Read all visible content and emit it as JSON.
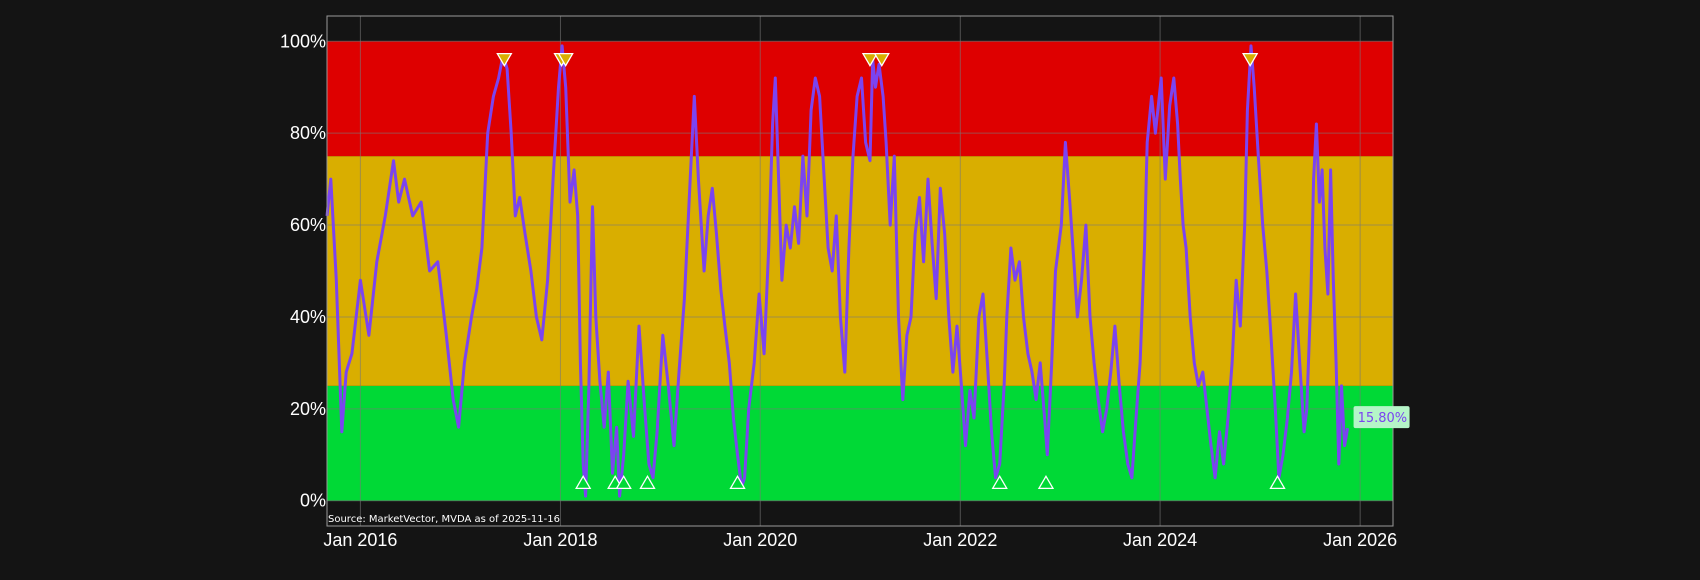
{
  "chart_data": {
    "type": "line",
    "title": "",
    "xlabel": "",
    "ylabel": "",
    "x_range": [
      "2015-09-01",
      "2026-05-01"
    ],
    "ylim": [
      -5.5,
      105.5
    ],
    "x_ticks": [
      {
        "date": "2016-01-01",
        "label": "Jan 2016"
      },
      {
        "date": "2018-01-01",
        "label": "Jan 2018"
      },
      {
        "date": "2020-01-01",
        "label": "Jan 2020"
      },
      {
        "date": "2022-01-01",
        "label": "Jan 2022"
      },
      {
        "date": "2024-01-01",
        "label": "Jan 2024"
      },
      {
        "date": "2026-01-01",
        "label": "Jan 2026"
      }
    ],
    "y_ticks": [
      {
        "value": 0,
        "label": "0%"
      },
      {
        "value": 20,
        "label": "20%"
      },
      {
        "value": 40,
        "label": "40%"
      },
      {
        "value": 60,
        "label": "60%"
      },
      {
        "value": 80,
        "label": "80%"
      },
      {
        "value": 100,
        "label": "100%"
      }
    ],
    "grid": true,
    "bands": [
      {
        "from": 0,
        "to": 25,
        "color": "#00d936"
      },
      {
        "from": 25,
        "to": 75,
        "color": "#d9ae00"
      },
      {
        "from": 75,
        "to": 100,
        "color": "#de0000"
      }
    ],
    "series": [
      {
        "color": "#7b44f0",
        "points": [
          [
            "2015-09-01",
            62
          ],
          [
            "2015-09-15",
            70
          ],
          [
            "2015-10-05",
            48
          ],
          [
            "2015-10-25",
            15
          ],
          [
            "2015-11-10",
            28
          ],
          [
            "2015-12-01",
            32
          ],
          [
            "2016-01-01",
            48
          ],
          [
            "2016-02-01",
            36
          ],
          [
            "2016-03-01",
            52
          ],
          [
            "2016-04-01",
            62
          ],
          [
            "2016-05-01",
            74
          ],
          [
            "2016-05-20",
            65
          ],
          [
            "2016-06-10",
            70
          ],
          [
            "2016-07-10",
            62
          ],
          [
            "2016-08-10",
            65
          ],
          [
            "2016-09-10",
            50
          ],
          [
            "2016-10-10",
            52
          ],
          [
            "2016-11-10",
            36
          ],
          [
            "2016-12-05",
            22
          ],
          [
            "2016-12-25",
            16
          ],
          [
            "2017-01-15",
            30
          ],
          [
            "2017-02-10",
            40
          ],
          [
            "2017-03-01",
            46
          ],
          [
            "2017-03-20",
            55
          ],
          [
            "2017-04-10",
            80
          ],
          [
            "2017-05-01",
            88
          ],
          [
            "2017-05-20",
            92
          ],
          [
            "2017-06-05",
            97
          ],
          [
            "2017-06-20",
            94
          ],
          [
            "2017-07-05",
            80
          ],
          [
            "2017-07-20",
            62
          ],
          [
            "2017-08-05",
            66
          ],
          [
            "2017-08-25",
            58
          ],
          [
            "2017-09-15",
            50
          ],
          [
            "2017-10-05",
            40
          ],
          [
            "2017-10-25",
            35
          ],
          [
            "2017-11-15",
            48
          ],
          [
            "2017-12-05",
            70
          ],
          [
            "2017-12-25",
            90
          ],
          [
            "2018-01-07",
            99
          ],
          [
            "2018-01-20",
            90
          ],
          [
            "2018-02-05",
            65
          ],
          [
            "2018-02-20",
            72
          ],
          [
            "2018-03-05",
            62
          ],
          [
            "2018-03-15",
            30
          ],
          [
            "2018-03-25",
            8
          ],
          [
            "2018-04-03",
            1
          ],
          [
            "2018-04-15",
            25
          ],
          [
            "2018-04-28",
            64
          ],
          [
            "2018-05-10",
            40
          ],
          [
            "2018-05-25",
            26
          ],
          [
            "2018-06-10",
            16
          ],
          [
            "2018-06-25",
            28
          ],
          [
            "2018-07-10",
            6
          ],
          [
            "2018-07-25",
            16
          ],
          [
            "2018-08-05",
            1
          ],
          [
            "2018-08-20",
            10
          ],
          [
            "2018-09-05",
            26
          ],
          [
            "2018-09-25",
            14
          ],
          [
            "2018-10-15",
            38
          ],
          [
            "2018-11-05",
            20
          ],
          [
            "2018-11-20",
            8
          ],
          [
            "2018-12-05",
            5
          ],
          [
            "2018-12-20",
            15
          ],
          [
            "2019-01-10",
            36
          ],
          [
            "2019-01-30",
            25
          ],
          [
            "2019-02-20",
            12
          ],
          [
            "2019-03-10",
            28
          ],
          [
            "2019-03-30",
            44
          ],
          [
            "2019-04-20",
            70
          ],
          [
            "2019-05-05",
            88
          ],
          [
            "2019-05-20",
            70
          ],
          [
            "2019-06-10",
            50
          ],
          [
            "2019-06-25",
            62
          ],
          [
            "2019-07-10",
            68
          ],
          [
            "2019-07-25",
            58
          ],
          [
            "2019-08-10",
            46
          ],
          [
            "2019-08-25",
            38
          ],
          [
            "2019-09-10",
            30
          ],
          [
            "2019-09-25",
            18
          ],
          [
            "2019-10-10",
            10
          ],
          [
            "2019-10-25",
            3
          ],
          [
            "2019-11-05",
            5
          ],
          [
            "2019-11-20",
            20
          ],
          [
            "2019-12-10",
            30
          ],
          [
            "2019-12-28",
            45
          ],
          [
            "2020-01-15",
            32
          ],
          [
            "2020-02-01",
            55
          ],
          [
            "2020-02-15",
            82
          ],
          [
            "2020-02-25",
            92
          ],
          [
            "2020-03-08",
            70
          ],
          [
            "2020-03-20",
            48
          ],
          [
            "2020-04-05",
            60
          ],
          [
            "2020-04-20",
            55
          ],
          [
            "2020-05-05",
            64
          ],
          [
            "2020-05-20",
            56
          ],
          [
            "2020-06-05",
            75
          ],
          [
            "2020-06-20",
            62
          ],
          [
            "2020-07-05",
            85
          ],
          [
            "2020-07-20",
            92
          ],
          [
            "2020-08-05",
            88
          ],
          [
            "2020-08-20",
            72
          ],
          [
            "2020-09-05",
            55
          ],
          [
            "2020-09-20",
            50
          ],
          [
            "2020-10-05",
            62
          ],
          [
            "2020-10-20",
            40
          ],
          [
            "2020-11-05",
            28
          ],
          [
            "2020-11-20",
            55
          ],
          [
            "2020-12-05",
            75
          ],
          [
            "2020-12-20",
            88
          ],
          [
            "2021-01-05",
            92
          ],
          [
            "2021-01-20",
            78
          ],
          [
            "2021-02-05",
            74
          ],
          [
            "2021-02-15",
            96
          ],
          [
            "2021-02-25",
            90
          ],
          [
            "2021-03-10",
            95
          ],
          [
            "2021-03-25",
            88
          ],
          [
            "2021-04-05",
            78
          ],
          [
            "2021-04-20",
            60
          ],
          [
            "2021-05-05",
            75
          ],
          [
            "2021-05-20",
            40
          ],
          [
            "2021-06-05",
            22
          ],
          [
            "2021-06-20",
            36
          ],
          [
            "2021-07-05",
            40
          ],
          [
            "2021-07-20",
            58
          ],
          [
            "2021-08-05",
            66
          ],
          [
            "2021-08-20",
            52
          ],
          [
            "2021-09-05",
            70
          ],
          [
            "2021-09-20",
            56
          ],
          [
            "2021-10-05",
            44
          ],
          [
            "2021-10-20",
            68
          ],
          [
            "2021-11-05",
            58
          ],
          [
            "2021-11-20",
            40
          ],
          [
            "2021-12-05",
            28
          ],
          [
            "2021-12-20",
            38
          ],
          [
            "2022-01-05",
            25
          ],
          [
            "2022-01-20",
            12
          ],
          [
            "2022-02-05",
            24
          ],
          [
            "2022-02-20",
            18
          ],
          [
            "2022-03-10",
            40
          ],
          [
            "2022-03-25",
            45
          ],
          [
            "2022-04-10",
            30
          ],
          [
            "2022-04-25",
            15
          ],
          [
            "2022-05-10",
            5
          ],
          [
            "2022-05-25",
            8
          ],
          [
            "2022-06-10",
            25
          ],
          [
            "2022-06-20",
            40
          ],
          [
            "2022-07-05",
            55
          ],
          [
            "2022-07-20",
            48
          ],
          [
            "2022-08-05",
            52
          ],
          [
            "2022-08-20",
            40
          ],
          [
            "2022-09-05",
            32
          ],
          [
            "2022-09-20",
            28
          ],
          [
            "2022-10-05",
            22
          ],
          [
            "2022-10-20",
            30
          ],
          [
            "2022-11-05",
            18
          ],
          [
            "2022-11-15",
            10
          ],
          [
            "2022-12-01",
            30
          ],
          [
            "2022-12-15",
            50
          ],
          [
            "2023-01-05",
            60
          ],
          [
            "2023-01-20",
            78
          ],
          [
            "2023-02-05",
            65
          ],
          [
            "2023-02-20",
            52
          ],
          [
            "2023-03-05",
            40
          ],
          [
            "2023-03-20",
            48
          ],
          [
            "2023-04-05",
            60
          ],
          [
            "2023-04-20",
            40
          ],
          [
            "2023-05-05",
            30
          ],
          [
            "2023-05-20",
            22
          ],
          [
            "2023-06-05",
            15
          ],
          [
            "2023-06-20",
            20
          ],
          [
            "2023-07-05",
            28
          ],
          [
            "2023-07-20",
            38
          ],
          [
            "2023-08-05",
            25
          ],
          [
            "2023-08-20",
            15
          ],
          [
            "2023-09-05",
            8
          ],
          [
            "2023-09-20",
            5
          ],
          [
            "2023-10-05",
            18
          ],
          [
            "2023-10-20",
            30
          ],
          [
            "2023-11-05",
            55
          ],
          [
            "2023-11-15",
            78
          ],
          [
            "2023-12-01",
            88
          ],
          [
            "2023-12-15",
            80
          ],
          [
            "2024-01-05",
            92
          ],
          [
            "2024-01-20",
            70
          ],
          [
            "2024-02-05",
            86
          ],
          [
            "2024-02-20",
            92
          ],
          [
            "2024-03-05",
            82
          ],
          [
            "2024-03-15",
            70
          ],
          [
            "2024-03-25",
            60
          ],
          [
            "2024-04-05",
            55
          ],
          [
            "2024-04-20",
            40
          ],
          [
            "2024-05-05",
            30
          ],
          [
            "2024-05-20",
            25
          ],
          [
            "2024-06-05",
            28
          ],
          [
            "2024-06-20",
            20
          ],
          [
            "2024-07-05",
            12
          ],
          [
            "2024-07-20",
            5
          ],
          [
            "2024-08-05",
            15
          ],
          [
            "2024-08-20",
            8
          ],
          [
            "2024-09-05",
            18
          ],
          [
            "2024-09-20",
            30
          ],
          [
            "2024-10-05",
            48
          ],
          [
            "2024-10-20",
            38
          ],
          [
            "2024-11-05",
            60
          ],
          [
            "2024-11-15",
            85
          ],
          [
            "2024-11-28",
            99
          ],
          [
            "2024-12-10",
            90
          ],
          [
            "2024-12-25",
            75
          ],
          [
            "2025-01-10",
            60
          ],
          [
            "2025-01-25",
            50
          ],
          [
            "2025-02-10",
            35
          ],
          [
            "2025-02-25",
            20
          ],
          [
            "2025-03-10",
            5
          ],
          [
            "2025-03-25",
            10
          ],
          [
            "2025-04-10",
            18
          ],
          [
            "2025-04-25",
            28
          ],
          [
            "2025-05-10",
            45
          ],
          [
            "2025-05-25",
            30
          ],
          [
            "2025-06-10",
            15
          ],
          [
            "2025-06-20",
            20
          ],
          [
            "2025-07-05",
            45
          ],
          [
            "2025-07-15",
            70
          ],
          [
            "2025-07-25",
            82
          ],
          [
            "2025-08-05",
            65
          ],
          [
            "2025-08-15",
            72
          ],
          [
            "2025-08-25",
            55
          ],
          [
            "2025-09-05",
            45
          ],
          [
            "2025-09-15",
            72
          ],
          [
            "2025-09-25",
            48
          ],
          [
            "2025-10-05",
            30
          ],
          [
            "2025-10-15",
            8
          ],
          [
            "2025-10-25",
            25
          ],
          [
            "2025-11-05",
            12
          ],
          [
            "2025-11-16",
            15.8
          ]
        ]
      }
    ],
    "top_markers": [
      "2017-06-10",
      "2018-01-05",
      "2018-01-20",
      "2021-02-05",
      "2021-03-20",
      "2024-11-25"
    ],
    "bottom_markers": [
      "2018-03-25",
      "2018-07-20",
      "2018-08-20",
      "2018-11-15",
      "2019-10-10",
      "2022-05-25",
      "2022-11-10",
      "2025-03-05"
    ],
    "last_value_label": "15.80%",
    "source_note": "Source: MarketVector, MVDA as of 2025-11-16"
  }
}
